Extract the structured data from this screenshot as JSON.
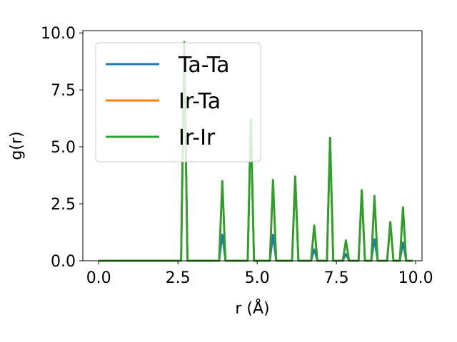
{
  "chart_data": {
    "type": "line",
    "xlabel": "r (Å)",
    "ylabel": "g(r)",
    "xlim": [
      -0.5,
      10.2
    ],
    "ylim": [
      0,
      10.1
    ],
    "xticks": [
      0.0,
      2.5,
      5.0,
      7.5,
      10.0
    ],
    "xtick_labels": [
      "0.0",
      "2.5",
      "5.0",
      "7.5",
      "10.0"
    ],
    "yticks": [
      0.0,
      2.5,
      5.0,
      7.5,
      10.0
    ],
    "ytick_labels": [
      "0.0",
      "2.5",
      "5.0",
      "7.5",
      "10.0"
    ],
    "grid": false,
    "legend_position": "top-left",
    "series": [
      {
        "name": "Ta-Ta",
        "color": "#1f77b4",
        "points": [
          [
            0.0,
            0
          ],
          [
            2.6,
            0
          ],
          [
            2.7,
            9.6
          ],
          [
            2.8,
            0
          ],
          [
            3.8,
            0
          ],
          [
            3.9,
            1.15
          ],
          [
            4.0,
            0
          ],
          [
            4.7,
            0
          ],
          [
            4.8,
            6.2
          ],
          [
            4.9,
            0
          ],
          [
            5.4,
            0
          ],
          [
            5.5,
            1.15
          ],
          [
            5.6,
            0
          ],
          [
            6.1,
            0
          ],
          [
            6.2,
            3.7
          ],
          [
            6.3,
            0
          ],
          [
            6.7,
            0
          ],
          [
            6.8,
            0.5
          ],
          [
            6.9,
            0
          ],
          [
            7.2,
            0
          ],
          [
            7.3,
            5.4
          ],
          [
            7.4,
            0
          ],
          [
            7.7,
            0
          ],
          [
            7.8,
            0.3
          ],
          [
            7.9,
            0
          ],
          [
            8.2,
            0
          ],
          [
            8.3,
            3.1
          ],
          [
            8.4,
            0
          ],
          [
            8.6,
            0
          ],
          [
            8.7,
            0.95
          ],
          [
            8.8,
            0
          ],
          [
            9.1,
            0
          ],
          [
            9.2,
            1.7
          ],
          [
            9.3,
            0
          ],
          [
            9.5,
            0
          ],
          [
            9.6,
            0.8
          ],
          [
            9.7,
            0
          ],
          [
            9.9,
            0
          ]
        ]
      },
      {
        "name": "Ir-Ta",
        "color": "#ff7f0e",
        "points": [
          [
            0.0,
            0
          ],
          [
            2.6,
            0
          ],
          [
            2.7,
            9.6
          ],
          [
            2.8,
            0
          ],
          [
            3.8,
            0
          ],
          [
            3.9,
            3.5
          ],
          [
            4.0,
            0
          ],
          [
            4.7,
            0
          ],
          [
            4.8,
            6.2
          ],
          [
            4.9,
            0
          ],
          [
            5.4,
            0
          ],
          [
            5.5,
            3.55
          ],
          [
            5.6,
            0
          ],
          [
            6.1,
            0
          ],
          [
            6.2,
            3.7
          ],
          [
            6.3,
            0
          ],
          [
            6.7,
            0
          ],
          [
            6.8,
            1.55
          ],
          [
            6.9,
            0
          ],
          [
            7.2,
            0
          ],
          [
            7.3,
            5.4
          ],
          [
            7.4,
            0
          ],
          [
            7.7,
            0
          ],
          [
            7.8,
            0.9
          ],
          [
            7.9,
            0
          ],
          [
            8.2,
            0
          ],
          [
            8.3,
            3.1
          ],
          [
            8.4,
            0
          ],
          [
            8.6,
            0
          ],
          [
            8.7,
            2.85
          ],
          [
            8.8,
            0
          ],
          [
            9.1,
            0
          ],
          [
            9.2,
            1.7
          ],
          [
            9.3,
            0
          ],
          [
            9.5,
            0
          ],
          [
            9.6,
            2.35
          ],
          [
            9.7,
            0
          ],
          [
            9.9,
            0
          ]
        ]
      },
      {
        "name": "Ir-Ir",
        "color": "#2ca02c",
        "points": [
          [
            0.0,
            0
          ],
          [
            2.6,
            0
          ],
          [
            2.7,
            9.6
          ],
          [
            2.8,
            0
          ],
          [
            3.8,
            0
          ],
          [
            3.9,
            3.5
          ],
          [
            4.0,
            0
          ],
          [
            4.7,
            0
          ],
          [
            4.8,
            6.2
          ],
          [
            4.9,
            0
          ],
          [
            5.4,
            0
          ],
          [
            5.5,
            3.55
          ],
          [
            5.6,
            0
          ],
          [
            6.1,
            0
          ],
          [
            6.2,
            3.7
          ],
          [
            6.3,
            0
          ],
          [
            6.7,
            0
          ],
          [
            6.8,
            1.55
          ],
          [
            6.9,
            0
          ],
          [
            7.2,
            0
          ],
          [
            7.3,
            5.4
          ],
          [
            7.4,
            0
          ],
          [
            7.7,
            0
          ],
          [
            7.8,
            0.9
          ],
          [
            7.9,
            0
          ],
          [
            8.2,
            0
          ],
          [
            8.3,
            3.1
          ],
          [
            8.4,
            0
          ],
          [
            8.6,
            0
          ],
          [
            8.7,
            2.85
          ],
          [
            8.8,
            0
          ],
          [
            9.1,
            0
          ],
          [
            9.2,
            1.7
          ],
          [
            9.3,
            0
          ],
          [
            9.5,
            0
          ],
          [
            9.6,
            2.35
          ],
          [
            9.7,
            0
          ],
          [
            9.9,
            0
          ]
        ]
      }
    ]
  }
}
